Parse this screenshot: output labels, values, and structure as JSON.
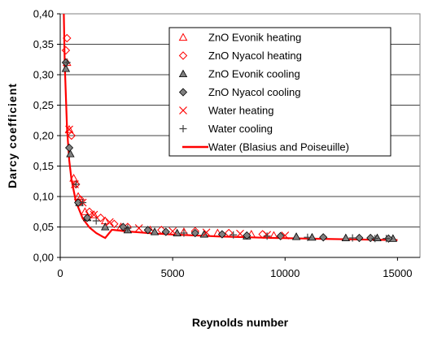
{
  "chart_data": {
    "type": "scatter",
    "title": "",
    "xlabel": "Reynolds number",
    "ylabel": "Darcy coefficient",
    "xlim": [
      0,
      16000
    ],
    "ylim": [
      0,
      0.4
    ],
    "x_ticks": [
      0,
      5000,
      10000,
      15000
    ],
    "x_tick_labels": [
      "0",
      "5000",
      "10000",
      "15000"
    ],
    "y_ticks": [
      0,
      0.05,
      0.1,
      0.15,
      0.2,
      0.25,
      0.3,
      0.35,
      0.4
    ],
    "y_tick_labels": [
      "0,00",
      "0,05",
      "0,10",
      "0,15",
      "0,20",
      "0,25",
      "0,30",
      "0,35",
      "0,40"
    ],
    "grid": "horizontal",
    "legend_position": "top-right",
    "series": [
      {
        "name": "ZnO Evonik heating",
        "marker": "triangle-open",
        "color": "#ff0000",
        "points": [
          [
            300,
            0.32
          ],
          [
            400,
            0.21
          ],
          [
            600,
            0.13
          ],
          [
            800,
            0.1
          ],
          [
            1100,
            0.075
          ],
          [
            1500,
            0.07
          ],
          [
            2000,
            0.06
          ],
          [
            2700,
            0.05
          ],
          [
            4000,
            0.045
          ],
          [
            5500,
            0.042
          ],
          [
            7000,
            0.04
          ],
          [
            8500,
            0.038
          ],
          [
            9500,
            0.036
          ]
        ]
      },
      {
        "name": "ZnO Nyacol heating",
        "marker": "diamond-open",
        "color": "#ff0000",
        "points": [
          [
            250,
            0.34
          ],
          [
            300,
            0.36
          ],
          [
            500,
            0.2
          ],
          [
            700,
            0.12
          ],
          [
            900,
            0.095
          ],
          [
            1300,
            0.075
          ],
          [
            1800,
            0.065
          ],
          [
            2400,
            0.055
          ],
          [
            3000,
            0.05
          ],
          [
            4500,
            0.045
          ],
          [
            6000,
            0.043
          ],
          [
            7500,
            0.04
          ],
          [
            9000,
            0.038
          ]
        ]
      },
      {
        "name": "ZnO Evonik cooling",
        "marker": "triangle-filled",
        "color": "#808080",
        "points": [
          [
            250,
            0.31
          ],
          [
            450,
            0.17
          ],
          [
            850,
            0.09
          ],
          [
            1200,
            0.065
          ],
          [
            2000,
            0.05
          ],
          [
            3000,
            0.045
          ],
          [
            4200,
            0.042
          ],
          [
            5200,
            0.04
          ],
          [
            6400,
            0.038
          ],
          [
            8300,
            0.035
          ],
          [
            10500,
            0.034
          ],
          [
            11200,
            0.033
          ],
          [
            12700,
            0.032
          ],
          [
            14100,
            0.032
          ],
          [
            14800,
            0.031
          ]
        ]
      },
      {
        "name": "ZnO Nyacol cooling",
        "marker": "diamond-filled",
        "color": "#808080",
        "points": [
          [
            250,
            0.32
          ],
          [
            400,
            0.18
          ],
          [
            800,
            0.09
          ],
          [
            1200,
            0.065
          ],
          [
            2800,
            0.05
          ],
          [
            3900,
            0.045
          ],
          [
            4700,
            0.042
          ],
          [
            6000,
            0.04
          ],
          [
            7200,
            0.038
          ],
          [
            8300,
            0.036
          ],
          [
            9800,
            0.035
          ],
          [
            11700,
            0.033
          ],
          [
            13300,
            0.032
          ],
          [
            13800,
            0.032
          ],
          [
            14600,
            0.031
          ]
        ]
      },
      {
        "name": "Water heating",
        "marker": "x",
        "color": "#ff0000",
        "points": [
          [
            400,
            0.21
          ],
          [
            650,
            0.12
          ],
          [
            1000,
            0.09
          ],
          [
            1500,
            0.07
          ],
          [
            2200,
            0.058
          ],
          [
            3500,
            0.048
          ],
          [
            5000,
            0.043
          ],
          [
            6500,
            0.041
          ],
          [
            8000,
            0.039
          ],
          [
            9200,
            0.037
          ],
          [
            10000,
            0.036
          ]
        ]
      },
      {
        "name": "Water cooling",
        "marker": "plus",
        "color": "#404040",
        "points": [
          [
            300,
            0.32
          ],
          [
            700,
            0.12
          ],
          [
            1000,
            0.09
          ],
          [
            1600,
            0.06
          ],
          [
            3000,
            0.048
          ],
          [
            5500,
            0.04
          ],
          [
            7700,
            0.037
          ],
          [
            9200,
            0.035
          ],
          [
            11000,
            0.033
          ],
          [
            13000,
            0.032
          ],
          [
            14000,
            0.031
          ],
          [
            14500,
            0.031
          ]
        ]
      },
      {
        "name": "Water (Blasius and Poiseuille)",
        "marker": "line",
        "color": "#ff0000",
        "points": [
          [
            160,
            0.4
          ],
          [
            200,
            0.32
          ],
          [
            300,
            0.2133
          ],
          [
            400,
            0.16
          ],
          [
            500,
            0.128
          ],
          [
            700,
            0.0914
          ],
          [
            1000,
            0.064
          ],
          [
            1300,
            0.0492
          ],
          [
            1600,
            0.04
          ],
          [
            1900,
            0.0337
          ],
          [
            2000,
            0.032
          ],
          [
            2300,
            0.0455
          ],
          [
            2700,
            0.0438
          ],
          [
            3000,
            0.0427
          ],
          [
            4000,
            0.0397
          ],
          [
            5000,
            0.0376
          ],
          [
            7000,
            0.0346
          ],
          [
            9000,
            0.0324
          ],
          [
            11000,
            0.0309
          ],
          [
            13000,
            0.0296
          ],
          [
            15000,
            0.0285
          ]
        ]
      }
    ]
  }
}
